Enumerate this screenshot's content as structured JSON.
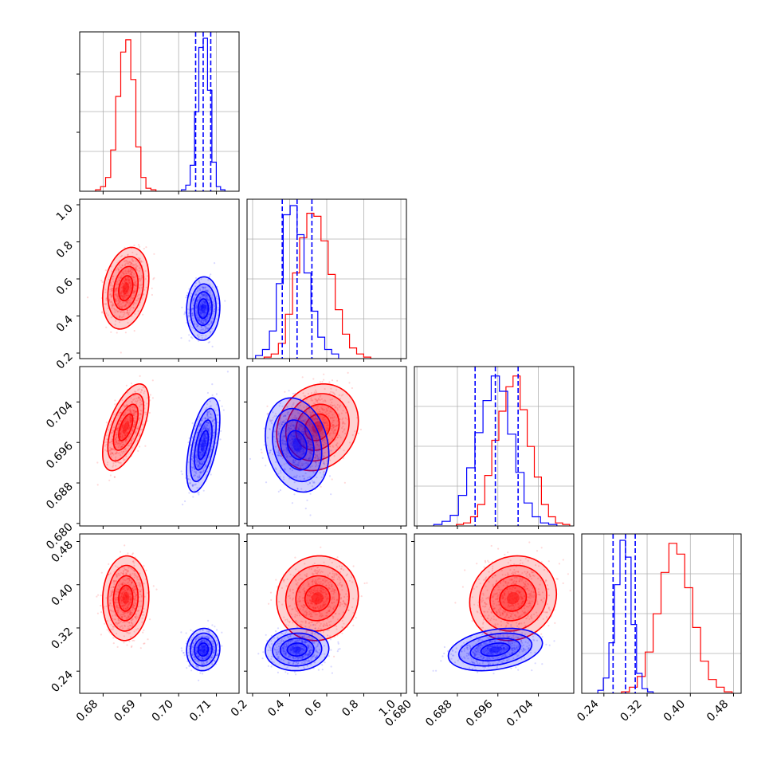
{
  "chart_data": {
    "type": "corner",
    "colors": {
      "red": "#ff0000",
      "blue": "#0000ff",
      "grid": "#b0b0b0"
    },
    "parameters": [
      {
        "ticks": [
          0.68,
          0.69,
          0.7,
          0.71
        ],
        "tick_labels": [
          "0.68",
          "0.69",
          "0.70",
          "0.71"
        ],
        "range": [
          0.6738,
          0.716
        ],
        "show_x_labels": true
      },
      {
        "ticks": [
          0.2,
          0.4,
          0.6,
          0.8,
          1.0
        ],
        "tick_labels": [
          "0.2",
          "0.4",
          "0.6",
          "0.8",
          "1.0"
        ],
        "range": [
          0.17,
          1.03
        ],
        "show_x_labels": true,
        "show_y_labels": true
      },
      {
        "ticks": [
          0.68,
          0.688,
          0.696,
          0.704
        ],
        "tick_labels": [
          "0.680",
          "0.688",
          "0.696",
          "0.704"
        ],
        "range": [
          0.6795,
          0.711
        ],
        "show_x_labels": true,
        "show_y_labels": true
      },
      {
        "ticks": [
          0.24,
          0.32,
          0.4,
          0.48
        ],
        "tick_labels": [
          "0.24",
          "0.32",
          "0.40",
          "0.48"
        ],
        "range": [
          0.199,
          0.494
        ],
        "show_x_labels": true,
        "show_y_labels": true
      }
    ],
    "series": [
      {
        "color_key": "red",
        "mean": [
          0.686,
          0.55,
          0.699,
          0.375
        ],
        "sigma": [
          0.0025,
          0.09,
          0.0035,
          0.032
        ],
        "corr": [
          [
            1,
            0.25,
            0.6,
            0.05
          ],
          [
            0.25,
            1,
            0.15,
            0.05
          ],
          [
            0.6,
            0.15,
            1,
            0.1
          ],
          [
            0.05,
            0.05,
            0.1,
            1
          ]
        ],
        "hist": [
          [
            0.01,
            0.03,
            0.09,
            0.27,
            0.62,
            0.91,
            0.99,
            0.73,
            0.29,
            0.09,
            0.02,
            0.01
          ],
          [
            0.01,
            0.03,
            0.1,
            0.29,
            0.56,
            0.79,
            0.95,
            0.93,
            0.77,
            0.55,
            0.32,
            0.16,
            0.07,
            0.03,
            0.01
          ],
          [
            0.01,
            0.02,
            0.06,
            0.14,
            0.33,
            0.56,
            0.75,
            0.91,
            0.98,
            0.76,
            0.52,
            0.32,
            0.14,
            0.06,
            0.02,
            0.01
          ],
          [
            0.01,
            0.04,
            0.11,
            0.27,
            0.52,
            0.79,
            0.98,
            0.91,
            0.69,
            0.43,
            0.21,
            0.09,
            0.04,
            0.01
          ]
        ]
      },
      {
        "color_key": "blue",
        "mean": [
          0.7065,
          0.44,
          0.6955,
          0.28
        ],
        "sigma": [
          0.0018,
          0.07,
          0.0038,
          0.016
        ],
        "corr": [
          [
            1,
            0.05,
            0.55,
            0.05
          ],
          [
            0.05,
            1,
            -0.2,
            0.05
          ],
          [
            0.55,
            -0.2,
            1,
            0.3
          ],
          [
            0.05,
            0.05,
            0.3,
            1
          ]
        ],
        "quantiles": [
          [
            0.7045,
            0.7065,
            0.7085
          ],
          [
            0.36,
            0.44,
            0.52
          ],
          [
            0.6915,
            0.6955,
            0.7
          ],
          [
            0.257,
            0.28,
            0.298
          ]
        ],
        "hist": [
          [
            0.01,
            0.04,
            0.17,
            0.52,
            0.94,
            1.0,
            0.66,
            0.19,
            0.03,
            0.01
          ],
          [
            0.02,
            0.06,
            0.18,
            0.49,
            0.94,
            1.0,
            0.81,
            0.56,
            0.31,
            0.14,
            0.06,
            0.03
          ],
          [
            0.01,
            0.03,
            0.07,
            0.2,
            0.38,
            0.61,
            0.82,
            0.98,
            0.88,
            0.6,
            0.35,
            0.15,
            0.06,
            0.02,
            0.01
          ],
          [
            0.02,
            0.1,
            0.33,
            0.71,
            1.0,
            0.89,
            0.45,
            0.13,
            0.03,
            0.01
          ]
        ]
      }
    ]
  }
}
